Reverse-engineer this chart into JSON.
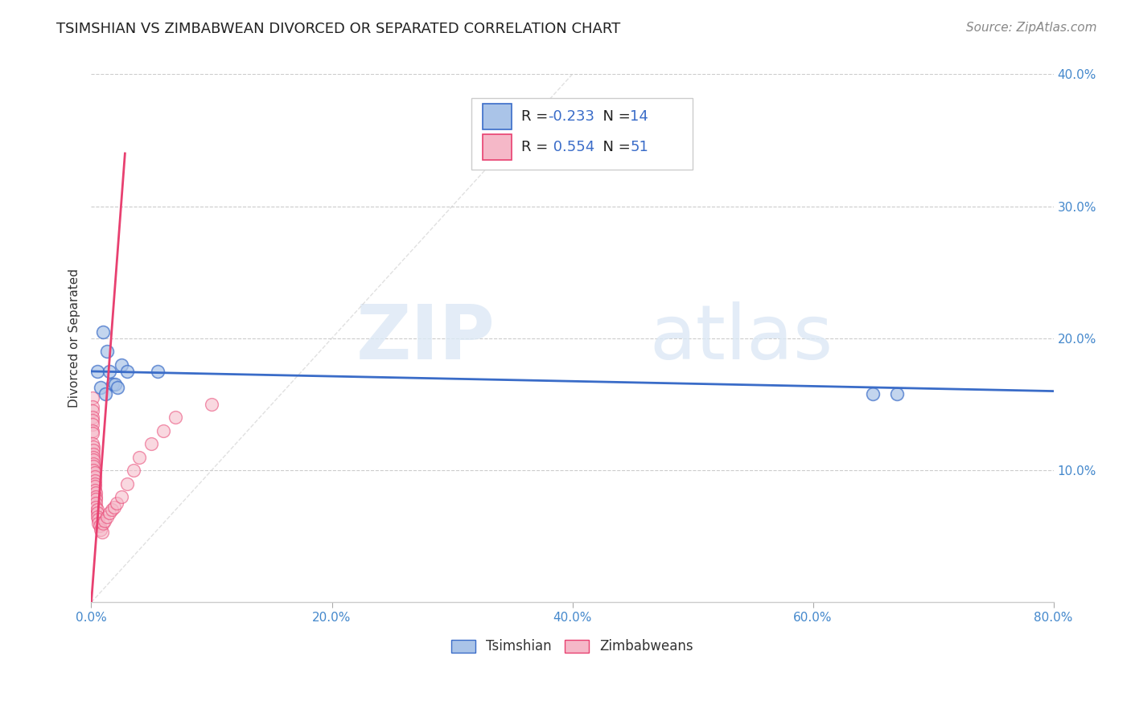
{
  "title": "TSIMSHIAN VS ZIMBABWEAN DIVORCED OR SEPARATED CORRELATION CHART",
  "source": "Source: ZipAtlas.com",
  "ylabel": "Divorced or Separated",
  "xlim": [
    0.0,
    0.8
  ],
  "ylim": [
    0.0,
    0.4
  ],
  "xticks": [
    0.0,
    0.2,
    0.4,
    0.6,
    0.8
  ],
  "yticks": [
    0.0,
    0.1,
    0.2,
    0.3,
    0.4
  ],
  "xtick_labels": [
    "0.0%",
    "",
    "",
    "",
    "80.0%"
  ],
  "ytick_labels_right": [
    "",
    "10.0%",
    "20.0%",
    "30.0%",
    "40.0%"
  ],
  "grid_color": "#cccccc",
  "background_color": "#ffffff",
  "tsimshian_color": "#aac4e8",
  "zimbabwean_color": "#f5b8c8",
  "tsimshian_R": -0.233,
  "tsimshian_N": 14,
  "zimbabwean_R": 0.554,
  "zimbabwean_N": 51,
  "tsimshian_line_color": "#3a6cc8",
  "zimbabwean_line_color": "#e84070",
  "legend_label_tsimshian": "Tsimshian",
  "legend_label_zimbabwean": "Zimbabweans",
  "watermark_zip": "ZIP",
  "watermark_atlas": "atlas",
  "tsimshian_x": [
    0.005,
    0.01,
    0.013,
    0.015,
    0.018,
    0.02,
    0.025,
    0.03,
    0.055,
    0.65,
    0.67,
    0.008,
    0.012,
    0.022
  ],
  "tsimshian_y": [
    0.175,
    0.205,
    0.19,
    0.175,
    0.165,
    0.165,
    0.18,
    0.175,
    0.175,
    0.158,
    0.158,
    0.163,
    0.158,
    0.163
  ],
  "zimbabwean_x": [
    0.001,
    0.001,
    0.001,
    0.001,
    0.001,
    0.001,
    0.001,
    0.001,
    0.001,
    0.002,
    0.002,
    0.002,
    0.002,
    0.002,
    0.002,
    0.002,
    0.002,
    0.003,
    0.003,
    0.003,
    0.003,
    0.003,
    0.003,
    0.004,
    0.004,
    0.004,
    0.004,
    0.004,
    0.005,
    0.005,
    0.005,
    0.006,
    0.006,
    0.007,
    0.008,
    0.009,
    0.01,
    0.011,
    0.013,
    0.015,
    0.017,
    0.019,
    0.021,
    0.025,
    0.03,
    0.035,
    0.04,
    0.05,
    0.06,
    0.07,
    0.1
  ],
  "zimbabwean_y": [
    0.155,
    0.148,
    0.145,
    0.14,
    0.138,
    0.135,
    0.13,
    0.128,
    0.12,
    0.118,
    0.115,
    0.112,
    0.11,
    0.108,
    0.105,
    0.103,
    0.1,
    0.098,
    0.095,
    0.092,
    0.09,
    0.088,
    0.085,
    0.083,
    0.08,
    0.078,
    0.075,
    0.072,
    0.07,
    0.068,
    0.065,
    0.063,
    0.06,
    0.058,
    0.055,
    0.053,
    0.06,
    0.062,
    0.065,
    0.068,
    0.07,
    0.072,
    0.075,
    0.08,
    0.09,
    0.1,
    0.11,
    0.12,
    0.13,
    0.14,
    0.15
  ],
  "diag_line_x": [
    0.0,
    0.4
  ],
  "diag_line_y": [
    0.0,
    0.4
  ]
}
